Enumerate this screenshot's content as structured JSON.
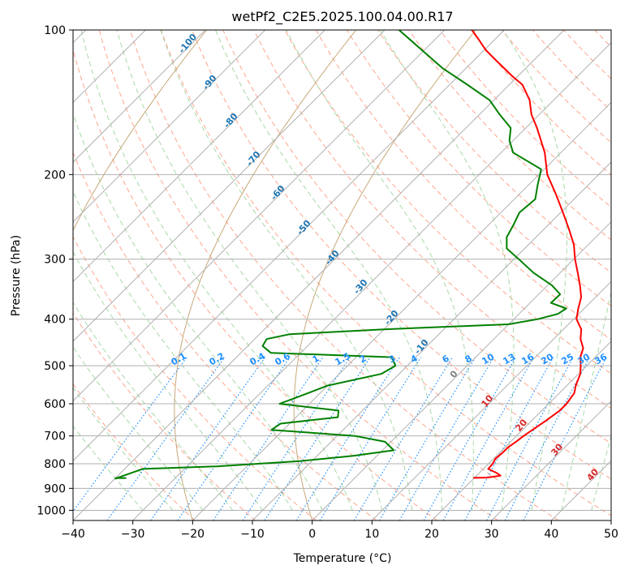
{
  "chart_data": {
    "type": "line",
    "subtype": "skew-t log-p diagram",
    "title": "wetPf2_C2E5.2025.100.04.00.R17",
    "xlabel": "Temperature (°C)",
    "ylabel": "Pressure (hPa)",
    "xlim": [
      -40,
      50
    ],
    "ylim": [
      1050,
      100
    ],
    "y_scale": "log",
    "grid": true,
    "x_ticks": [
      -40,
      -30,
      -20,
      -10,
      0,
      10,
      20,
      30,
      40,
      50
    ],
    "y_ticks": [
      100,
      200,
      300,
      400,
      500,
      600,
      700,
      800,
      900,
      1000
    ],
    "series": [
      {
        "color": "#ff0000",
        "points": [
          [
            856,
            19.8
          ],
          [
            855,
            22.0
          ],
          [
            847,
            24.0
          ],
          [
            836,
            22.9
          ],
          [
            820,
            20.8
          ],
          [
            800,
            20.7
          ],
          [
            781,
            20.3
          ],
          [
            760,
            20.5
          ],
          [
            740,
            20.5
          ],
          [
            720,
            20.9
          ],
          [
            700,
            21.2
          ],
          [
            650,
            22.4
          ],
          [
            620,
            23.0
          ],
          [
            600,
            23.0
          ],
          [
            570,
            22.5
          ],
          [
            550,
            21.5
          ],
          [
            520,
            20.3
          ],
          [
            500,
            19.0
          ],
          [
            480,
            17.5
          ],
          [
            460,
            16.5
          ],
          [
            440,
            14.5
          ],
          [
            420,
            13.0
          ],
          [
            400,
            10.5
          ],
          [
            380,
            9.0
          ],
          [
            360,
            7.6
          ],
          [
            340,
            5.4
          ],
          [
            320,
            2.9
          ],
          [
            300,
            0.2
          ],
          [
            280,
            -2.4
          ],
          [
            260,
            -5.8
          ],
          [
            240,
            -9.6
          ],
          [
            220,
            -13.8
          ],
          [
            200,
            -18.6
          ],
          [
            180,
            -22.7
          ],
          [
            160,
            -28.1
          ],
          [
            150,
            -31.3
          ],
          [
            140,
            -34.0
          ],
          [
            130,
            -37.8
          ],
          [
            125,
            -40.8
          ],
          [
            115,
            -46.7
          ],
          [
            110,
            -49.8
          ],
          [
            105,
            -52.5
          ],
          [
            100,
            -55.4
          ]
        ]
      },
      {
        "color": "#008000",
        "points": [
          [
            860,
            -40.0
          ],
          [
            820,
            -37.0
          ],
          [
            810,
            -25.0
          ],
          [
            790,
            -12.0
          ],
          [
            770,
            -4.0
          ],
          [
            750,
            1.9
          ],
          [
            720,
            -1.0
          ],
          [
            700,
            -7.0
          ],
          [
            680,
            -22.0
          ],
          [
            660,
            -21.5
          ],
          [
            640,
            -13.0
          ],
          [
            620,
            -14.0
          ],
          [
            600,
            -25.0
          ],
          [
            580,
            -23.0
          ],
          [
            550,
            -20.0
          ],
          [
            520,
            -13.0
          ],
          [
            500,
            -12.0
          ],
          [
            480,
            -14.0
          ],
          [
            470,
            -35.0
          ],
          [
            455,
            -37.5
          ],
          [
            440,
            -38.0
          ],
          [
            430,
            -35.0
          ],
          [
            420,
            -20.0
          ],
          [
            410,
            0.0
          ],
          [
            400,
            4.0
          ],
          [
            390,
            6.5
          ],
          [
            380,
            7.0
          ],
          [
            370,
            3.5
          ],
          [
            355,
            3.6
          ],
          [
            340,
            0.7
          ],
          [
            320,
            -4.5
          ],
          [
            300,
            -9.2
          ],
          [
            285,
            -13.0
          ],
          [
            270,
            -14.9
          ],
          [
            255,
            -15.8
          ],
          [
            240,
            -16.9
          ],
          [
            225,
            -16.5
          ],
          [
            210,
            -18.5
          ],
          [
            195,
            -20.5
          ],
          [
            180,
            -28.0
          ],
          [
            170,
            -30.6
          ],
          [
            160,
            -32.5
          ],
          [
            150,
            -36.6
          ],
          [
            140,
            -40.7
          ],
          [
            130,
            -47.0
          ],
          [
            120,
            -54.0
          ],
          [
            110,
            -60.5
          ],
          [
            100,
            -67.6
          ]
        ]
      },
      {
        "color": "#008000",
        "points": [
          [
            857,
            -40.0
          ],
          [
            857,
            -38.2
          ]
        ]
      }
    ],
    "dry_adiabat_labels": [
      "-100",
      "-90",
      "-80",
      "-70",
      "-60",
      "-50",
      "-40",
      "-30",
      "-20",
      "-10",
      "0",
      "10",
      "20",
      "30",
      "40"
    ],
    "mixing_ratio_labels": [
      "0.1",
      "0.2",
      "0.4",
      "0.6",
      "1",
      "1.5",
      "2",
      "3",
      "4",
      "6",
      "8",
      "10",
      "13",
      "16",
      "20",
      "25",
      "30",
      "36"
    ],
    "colors": {
      "temperature": "#ff0000",
      "dewpoint": "#008000",
      "grid": "#b0b0b0",
      "dry_adiabat_label": "#1f77b4",
      "moist_adiabat_label": "#d62728",
      "mixing_ratio": "#1e90ff",
      "dry_adiabat": "#ffa58c",
      "moist_adiabat": "#a8d8a8",
      "saturated_adiabat_brown": "#c8a878"
    }
  }
}
